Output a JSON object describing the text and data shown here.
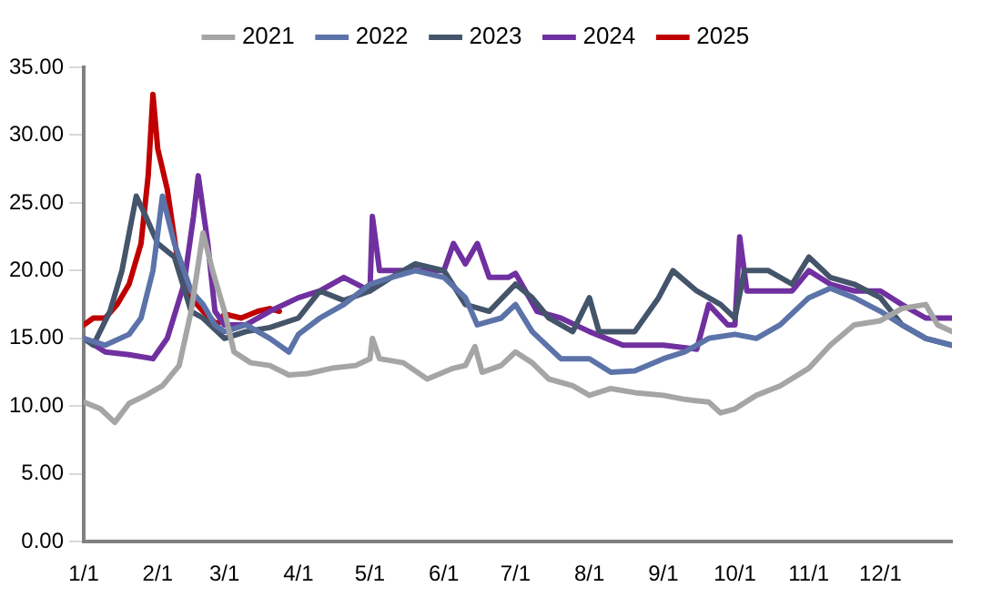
{
  "chart_data": {
    "type": "line",
    "legend": "top",
    "grid": false,
    "marker": "none",
    "line_style": "solid",
    "xlim": [
      "--01-01",
      "--12-31"
    ],
    "xticks": [
      {
        "value": "--01-01",
        "label": "1/1"
      },
      {
        "value": "--02-01",
        "label": "2/1"
      },
      {
        "value": "--03-01",
        "label": "3/1"
      },
      {
        "value": "--04-01",
        "label": "4/1"
      },
      {
        "value": "--05-01",
        "label": "5/1"
      },
      {
        "value": "--06-01",
        "label": "6/1"
      },
      {
        "value": "--07-01",
        "label": "7/1"
      },
      {
        "value": "--08-01",
        "label": "8/1"
      },
      {
        "value": "--09-01",
        "label": "9/1"
      },
      {
        "value": "--10-01",
        "label": "10/1"
      },
      {
        "value": "--11-01",
        "label": "11/1"
      },
      {
        "value": "--12-01",
        "label": "12/1"
      }
    ],
    "ylim": [
      0,
      35
    ],
    "yticks": [
      {
        "value": 0,
        "label": "0.00"
      },
      {
        "value": 5,
        "label": "5.00"
      },
      {
        "value": 10,
        "label": "10.00"
      },
      {
        "value": 15,
        "label": "15.00"
      },
      {
        "value": 20,
        "label": "20.00"
      },
      {
        "value": 25,
        "label": "25.00"
      },
      {
        "value": 30,
        "label": "30.00"
      },
      {
        "value": 35,
        "label": "35.00"
      }
    ],
    "series": [
      {
        "name": "2021",
        "color": "#a5a5a5",
        "x": [
          "--01-01",
          "--01-08",
          "--01-14",
          "--01-20",
          "--01-27",
          "--02-03",
          "--02-10",
          "--02-15",
          "--02-20",
          "--02-24",
          "--03-01",
          "--03-05",
          "--03-12",
          "--03-20",
          "--03-28",
          "--04-05",
          "--04-15",
          "--04-25",
          "--05-01",
          "--05-02",
          "--05-05",
          "--05-15",
          "--05-25",
          "--06-05",
          "--06-10",
          "--06-14",
          "--06-17",
          "--06-25",
          "--07-01",
          "--07-08",
          "--07-15",
          "--07-25",
          "--08-01",
          "--08-10",
          "--08-20",
          "--09-01",
          "--09-10",
          "--09-20",
          "--09-25",
          "--10-01",
          "--10-10",
          "--10-20",
          "--11-01",
          "--11-10",
          "--11-20",
          "--12-01",
          "--12-10",
          "--12-20",
          "--12-25",
          "--12-31"
        ],
        "values": [
          10.3,
          9.8,
          8.8,
          10.2,
          10.8,
          11.5,
          13,
          17,
          22.8,
          20,
          17,
          14,
          13.2,
          13,
          12.3,
          12.4,
          12.8,
          13,
          13.5,
          15,
          13.5,
          13.2,
          12,
          12.8,
          13,
          14.4,
          12.5,
          13,
          14,
          13.2,
          12,
          11.5,
          10.8,
          11.3,
          11,
          10.8,
          10.5,
          10.3,
          9.5,
          9.8,
          10.8,
          11.5,
          12.8,
          14.5,
          16,
          16.3,
          17.2,
          17.5,
          16,
          15.5
        ]
      },
      {
        "name": "2022",
        "color": "#5b73a8",
        "x": [
          "--01-01",
          "--01-10",
          "--01-20",
          "--01-25",
          "--01-30",
          "--02-03",
          "--02-08",
          "--02-15",
          "--02-20",
          "--02-25",
          "--03-01",
          "--03-10",
          "--03-20",
          "--03-28",
          "--04-01",
          "--04-10",
          "--04-20",
          "--05-01",
          "--05-10",
          "--05-20",
          "--06-01",
          "--06-10",
          "--06-15",
          "--06-25",
          "--07-01",
          "--07-08",
          "--07-20",
          "--08-01",
          "--08-10",
          "--08-20",
          "--09-01",
          "--09-10",
          "--09-20",
          "--10-01",
          "--10-10",
          "--10-20",
          "--11-01",
          "--11-10",
          "--11-20",
          "--12-01",
          "--12-10",
          "--12-20",
          "--12-31"
        ],
        "values": [
          15,
          14.5,
          15.3,
          16.5,
          20,
          25.5,
          22,
          18.5,
          17.5,
          16,
          15.5,
          16,
          15,
          14,
          15.3,
          16.5,
          17.5,
          19,
          19.5,
          20,
          19.5,
          18,
          16,
          16.5,
          17.5,
          15.5,
          13.5,
          13.5,
          12.5,
          12.6,
          13.5,
          14,
          15,
          15.3,
          15,
          16,
          18,
          18.7,
          18,
          17,
          16,
          15,
          14.5
        ]
      },
      {
        "name": "2023",
        "color": "#44546a",
        "x": [
          "--01-01",
          "--01-05",
          "--01-12",
          "--01-17",
          "--01-23",
          "--01-27",
          "--02-01",
          "--02-08",
          "--02-15",
          "--02-20",
          "--03-01",
          "--03-10",
          "--03-20",
          "--04-01",
          "--04-10",
          "--04-20",
          "--05-01",
          "--05-10",
          "--05-20",
          "--06-01",
          "--06-10",
          "--06-20",
          "--07-01",
          "--07-08",
          "--07-15",
          "--07-25",
          "--08-01",
          "--08-05",
          "--08-20",
          "--08-30",
          "--09-05",
          "--09-15",
          "--09-25",
          "--10-01",
          "--10-05",
          "--10-15",
          "--10-25",
          "--11-01",
          "--11-10",
          "--11-20",
          "--12-01",
          "--12-10",
          "--12-20",
          "--12-31"
        ],
        "values": [
          15,
          14.5,
          17,
          20,
          25.5,
          24,
          22,
          21,
          17,
          16.5,
          15,
          15.5,
          15.8,
          16.5,
          18.5,
          17.8,
          18.5,
          19.5,
          20.5,
          20,
          17.5,
          17,
          19,
          18,
          16.5,
          15.5,
          18,
          15.5,
          15.5,
          18,
          20,
          18.5,
          17.5,
          16.5,
          20,
          20,
          19,
          21,
          19.5,
          19,
          18,
          16,
          15,
          14.5
        ]
      },
      {
        "name": "2024",
        "color": "#7030a0",
        "x": [
          "--01-01",
          "--01-10",
          "--01-20",
          "--01-30",
          "--02-05",
          "--02-12",
          "--02-16",
          "--02-18",
          "--02-22",
          "--02-25",
          "--03-01",
          "--03-10",
          "--03-20",
          "--04-01",
          "--04-10",
          "--04-20",
          "--05-01",
          "--05-02",
          "--05-05",
          "--05-15",
          "--06-01",
          "--06-05",
          "--06-10",
          "--06-15",
          "--06-20",
          "--06-28",
          "--07-01",
          "--07-10",
          "--07-20",
          "--08-01",
          "--08-15",
          "--09-01",
          "--09-15",
          "--09-20",
          "--09-28",
          "--10-01",
          "--10-03",
          "--10-06",
          "--10-15",
          "--10-25",
          "--11-01",
          "--11-10",
          "--11-20",
          "--12-01",
          "--12-10",
          "--12-20",
          "--12-31"
        ],
        "values": [
          15,
          14,
          13.8,
          13.5,
          15,
          19,
          24,
          27,
          22,
          17,
          16,
          16,
          17,
          18,
          18.5,
          19.5,
          18.5,
          24,
          20,
          20,
          20,
          22,
          20.5,
          22,
          19.5,
          19.5,
          19.8,
          17,
          16.5,
          15.5,
          14.5,
          14.5,
          14.2,
          17.5,
          16,
          16,
          22.5,
          18.5,
          18.5,
          18.5,
          20,
          19,
          18.5,
          18.5,
          17.5,
          16.5,
          16.5
        ]
      },
      {
        "name": "2025",
        "color": "#c00000",
        "x": [
          "--01-01",
          "--01-05",
          "--01-10",
          "--01-15",
          "--01-20",
          "--01-25",
          "--01-28",
          "--01-30",
          "--02-01",
          "--02-05",
          "--02-10",
          "--02-15",
          "--02-20",
          "--02-26",
          "--03-01",
          "--03-08",
          "--03-15",
          "--03-20",
          "--03-24"
        ],
        "values": [
          16,
          16.5,
          16.5,
          17.5,
          19,
          22,
          27,
          33,
          29,
          26,
          20,
          18,
          17,
          16,
          16.8,
          16.5,
          17,
          17.2,
          17
        ]
      }
    ]
  }
}
